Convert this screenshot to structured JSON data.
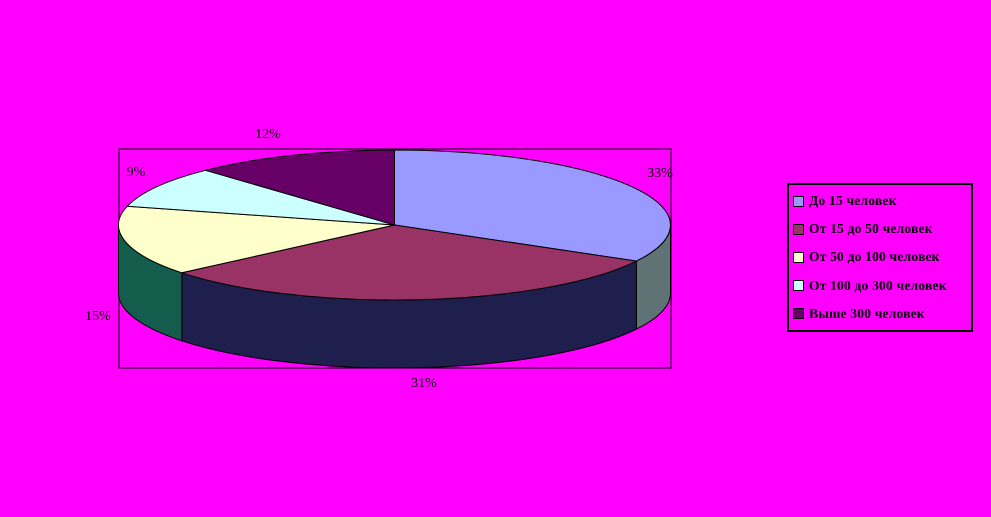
{
  "page": {
    "background_color": "#FF00FF"
  },
  "chart_data": {
    "type": "pie",
    "style": "3d-pie",
    "title": "",
    "categories": [
      "До 15 человек",
      "От 15 до 50 человек",
      "От 50 до 100 человек",
      "От 100 до 300 человек",
      "Выше 300 человек"
    ],
    "values": [
      33,
      31,
      15,
      9,
      12
    ],
    "value_unit": "percent",
    "data_labels": [
      "33%",
      "31%",
      "15%",
      "9%",
      "12%"
    ],
    "slice_colors": [
      "#9999FF",
      "#993366",
      "#FFFFCC",
      "#CCFFFF",
      "#660066"
    ],
    "slice_side_colors": [
      "#5F7274",
      "#1F1F4D",
      "#145C4C",
      null,
      null
    ],
    "outline_color": "#000000",
    "start_angle_deg": 0,
    "direction": "clockwise",
    "legend_position": "right",
    "plot_frame": true,
    "background_color": "#FF00FF"
  },
  "legend": {
    "items": [
      {
        "label": "До 15 человек",
        "color": "#9999FF"
      },
      {
        "label": "От 15 до 50 человек",
        "color": "#993366"
      },
      {
        "label": "От 50 до 100 человек",
        "color": "#FFFFCC"
      },
      {
        "label": "От 100 до 300 человек",
        "color": "#CCFFFF"
      },
      {
        "label": "Выше 300 человек",
        "color": "#660066"
      }
    ]
  }
}
